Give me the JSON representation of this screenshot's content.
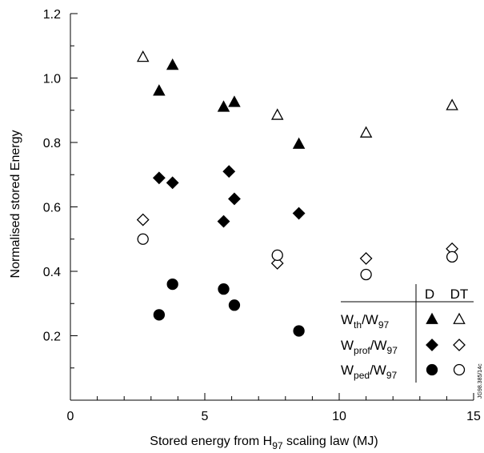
{
  "chart_data": {
    "type": "scatter",
    "xlabel": {
      "main": "Stored energy from H",
      "sub": "97",
      "tail": " scaling law (MJ)"
    },
    "ylabel": "Normalised stored Energy",
    "xlim": [
      0,
      15
    ],
    "ylim": [
      0,
      1.2
    ],
    "x_ticks": [
      {
        "value": 0,
        "label": "0"
      },
      {
        "value": 5,
        "label": "5"
      },
      {
        "value": 10,
        "label": "10"
      },
      {
        "value": 15,
        "label": "15"
      }
    ],
    "y_ticks": [
      {
        "value": 0.2,
        "label": "0.2"
      },
      {
        "value": 0.4,
        "label": "0.4"
      },
      {
        "value": 0.6,
        "label": "0.6"
      },
      {
        "value": 0.8,
        "label": "0.8"
      },
      {
        "value": 1.0,
        "label": "1.0"
      },
      {
        "value": 1.2,
        "label": "1.2"
      }
    ],
    "grid": false,
    "legend_position": "bottom-right",
    "legend_headers": [
      "D",
      "DT"
    ],
    "series": [
      {
        "name": {
          "main": "W",
          "sub": "th",
          "mid": "/W",
          "sub2": "97"
        },
        "marker": "triangle",
        "fill": "filled",
        "fuel": "D",
        "points": [
          [
            3.3,
            0.96
          ],
          [
            3.8,
            1.04
          ],
          [
            5.7,
            0.91
          ],
          [
            6.1,
            0.925
          ],
          [
            8.5,
            0.795
          ]
        ]
      },
      {
        "name": {
          "main": "W",
          "sub": "th",
          "mid": "/W",
          "sub2": "97"
        },
        "marker": "triangle",
        "fill": "open",
        "fuel": "DT",
        "points": [
          [
            2.7,
            1.065
          ],
          [
            7.7,
            0.885
          ],
          [
            11.0,
            0.83
          ],
          [
            14.2,
            0.915
          ]
        ]
      },
      {
        "name": {
          "main": "W",
          "sub": "prof",
          "mid": "/W",
          "sub2": "97"
        },
        "marker": "diamond",
        "fill": "filled",
        "fuel": "D",
        "points": [
          [
            3.3,
            0.69
          ],
          [
            3.8,
            0.675
          ],
          [
            5.7,
            0.555
          ],
          [
            5.9,
            0.71
          ],
          [
            6.1,
            0.625
          ],
          [
            8.5,
            0.58
          ]
        ]
      },
      {
        "name": {
          "main": "W",
          "sub": "prof",
          "mid": "/W",
          "sub2": "97"
        },
        "marker": "diamond",
        "fill": "open",
        "fuel": "DT",
        "points": [
          [
            2.7,
            0.56
          ],
          [
            7.7,
            0.425
          ],
          [
            11.0,
            0.44
          ],
          [
            14.2,
            0.47
          ]
        ]
      },
      {
        "name": {
          "main": "W",
          "sub": "ped",
          "mid": "/W",
          "sub2": "97"
        },
        "marker": "circle",
        "fill": "filled",
        "fuel": "D",
        "points": [
          [
            3.3,
            0.265
          ],
          [
            3.8,
            0.36
          ],
          [
            5.7,
            0.345
          ],
          [
            6.1,
            0.295
          ],
          [
            8.5,
            0.215
          ]
        ]
      },
      {
        "name": {
          "main": "W",
          "sub": "ped",
          "mid": "/W",
          "sub2": "97"
        },
        "marker": "circle",
        "fill": "open",
        "fuel": "DT",
        "points": [
          [
            2.7,
            0.5
          ],
          [
            7.7,
            0.45
          ],
          [
            11.0,
            0.39
          ],
          [
            14.2,
            0.445
          ]
        ]
      }
    ],
    "figure_code": "JG98.385/14c"
  }
}
